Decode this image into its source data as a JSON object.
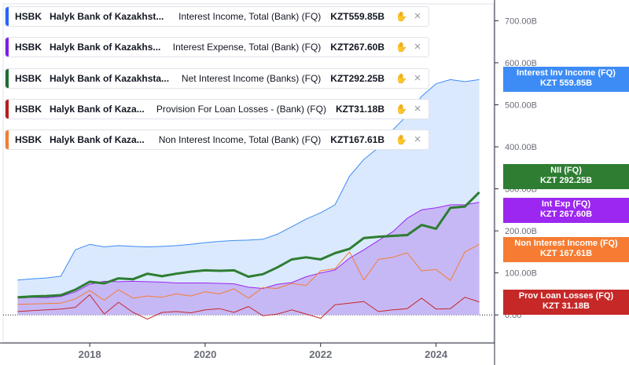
{
  "legend": [
    {
      "ticker": "HSBK",
      "company": "Halyk Bank of Kazakhst...",
      "metric": "Interest Income, Total (Bank) (FQ)",
      "value": "KZT559.85B",
      "color": "#2962ff"
    },
    {
      "ticker": "HSBK",
      "company": "Halyk Bank of Kazakhs...",
      "metric": "Interest Expense, Total (Bank) (FQ)",
      "value": "KZT267.60B",
      "color": "#7b1fe0"
    },
    {
      "ticker": "HSBK",
      "company": "Halyk Bank of Kazakhsta...",
      "metric": "Net Interest Income (Banks) (FQ)",
      "value": "KZT292.25B",
      "color": "#1e6b34"
    },
    {
      "ticker": "HSBK",
      "company": "Halyk Bank of Kaza...",
      "metric": "Provision For Loan Losses - (Bank) (FQ)",
      "value": "KZT31.18B",
      "color": "#b71c1c"
    },
    {
      "ticker": "HSBK",
      "company": "Halyk Bank of Kaza...",
      "metric": "Non Interest Income, Total (Bank) (FQ)",
      "value": "KZT167.61B",
      "color": "#f57c32"
    }
  ],
  "price_labels": [
    {
      "label": "Interest Inv Income (FQ)",
      "value": "KZT 559.85B",
      "color": "#3d8cf5",
      "y": 559.85
    },
    {
      "label": "NII (FQ)",
      "value": "KZT 292.25B",
      "color": "#2e7d32",
      "y": 330
    },
    {
      "label": "Int Exp (FQ)",
      "value": "KZT 267.60B",
      "color": "#9c27f0",
      "y": 248
    },
    {
      "label": "Non Interest Income (FQ)",
      "value": "KZT 167.61B",
      "color": "#f57c32",
      "y": 155
    },
    {
      "label": "Prov Loan Losses (FQ)",
      "value": "KZT 31.18B",
      "color": "#c62828",
      "y": 31.18
    }
  ],
  "chart_data": {
    "type": "area",
    "x_ticks": [
      "2018",
      "2020",
      "2022",
      "2024"
    ],
    "y_ticks": [
      "0.00",
      "100.00B",
      "200.00B",
      "300.00B",
      "400.00B",
      "500.00B",
      "600.00B",
      "700.00B"
    ],
    "y_tick_values": [
      0,
      100,
      200,
      300,
      400,
      500,
      600,
      700
    ],
    "ylim": [
      -65,
      740
    ],
    "xlim": [
      2016.5,
      2025.0
    ],
    "series": [
      {
        "name": "Interest Income, Total (Bank) (FQ)",
        "color": "#3d8cf5",
        "fill": "#d6e7fd",
        "width": 1,
        "x": [
          2016.75,
          2017.0,
          2017.25,
          2017.5,
          2017.75,
          2018.0,
          2018.25,
          2018.5,
          2018.75,
          2019.0,
          2019.25,
          2019.5,
          2019.75,
          2020.0,
          2020.25,
          2020.5,
          2020.75,
          2021.0,
          2021.25,
          2021.5,
          2021.75,
          2022.0,
          2022.25,
          2022.5,
          2022.75,
          2023.0,
          2023.25,
          2023.5,
          2023.75,
          2024.0,
          2024.25,
          2024.5,
          2024.75
        ],
        "values": [
          83,
          86,
          88,
          92,
          155,
          168,
          162,
          165,
          163,
          162,
          163,
          165,
          168,
          172,
          175,
          177,
          178,
          180,
          192,
          210,
          228,
          243,
          262,
          330,
          370,
          398,
          440,
          475,
          520,
          550,
          560,
          555,
          560
        ]
      },
      {
        "name": "Interest Expense, Total (Bank) (FQ)",
        "color": "#9c27f0",
        "fill": "#c3b3f4",
        "width": 1,
        "x": [
          2016.75,
          2017.0,
          2017.25,
          2017.5,
          2017.75,
          2018.0,
          2018.25,
          2018.5,
          2018.75,
          2019.0,
          2019.25,
          2019.5,
          2019.75,
          2020.0,
          2020.25,
          2020.5,
          2020.75,
          2021.0,
          2021.25,
          2021.5,
          2021.75,
          2022.0,
          2022.25,
          2022.5,
          2022.75,
          2023.0,
          2023.25,
          2023.5,
          2023.75,
          2024.0,
          2024.25,
          2024.5,
          2024.75
        ],
        "values": [
          40,
          42,
          41,
          44,
          55,
          73,
          80,
          79,
          80,
          79,
          78,
          76,
          76,
          76,
          75,
          74,
          66,
          63,
          73,
          77,
          91,
          100,
          107,
          135,
          155,
          177,
          198,
          230,
          250,
          255,
          262,
          262,
          268
        ]
      },
      {
        "name": "Non Interest Income, Total (Bank) (FQ)",
        "color": "#f57c32",
        "fill": "none",
        "width": 1,
        "x": [
          2016.75,
          2017.0,
          2017.25,
          2017.5,
          2017.75,
          2018.0,
          2018.25,
          2018.5,
          2018.75,
          2019.0,
          2019.25,
          2019.5,
          2019.75,
          2020.0,
          2020.25,
          2020.5,
          2020.75,
          2021.0,
          2021.25,
          2021.5,
          2021.75,
          2022.0,
          2022.25,
          2022.5,
          2022.75,
          2023.0,
          2023.25,
          2023.5,
          2023.75,
          2024.0,
          2024.25,
          2024.5,
          2024.75
        ],
        "values": [
          25,
          26,
          27,
          28,
          38,
          58,
          35,
          60,
          40,
          45,
          42,
          50,
          45,
          55,
          50,
          62,
          40,
          65,
          63,
          75,
          70,
          105,
          110,
          150,
          83,
          132,
          137,
          148,
          105,
          108,
          82,
          150,
          168
        ]
      },
      {
        "name": "Provision For Loan Losses - (Bank) (FQ)",
        "color": "#c62828",
        "fill": "none",
        "width": 1,
        "x": [
          2016.75,
          2017.0,
          2017.25,
          2017.5,
          2017.75,
          2018.0,
          2018.25,
          2018.5,
          2018.75,
          2019.0,
          2019.25,
          2019.5,
          2019.75,
          2020.0,
          2020.25,
          2020.5,
          2020.75,
          2021.0,
          2021.25,
          2021.5,
          2021.75,
          2022.0,
          2022.25,
          2022.5,
          2022.75,
          2023.0,
          2023.25,
          2023.5,
          2023.75,
          2024.0,
          2024.25,
          2024.5,
          2024.75
        ],
        "values": [
          8,
          10,
          12,
          14,
          18,
          48,
          2,
          30,
          6,
          -10,
          6,
          8,
          5,
          12,
          15,
          6,
          20,
          -2,
          2,
          12,
          2,
          -8,
          24,
          28,
          32,
          8,
          12,
          15,
          40,
          14,
          15,
          42,
          31
        ]
      },
      {
        "name": "Net Interest Income (Banks) (FQ)",
        "color": "#2e7d32",
        "fill": "none",
        "width": 3,
        "x": [
          2016.75,
          2017.0,
          2017.25,
          2017.5,
          2017.75,
          2018.0,
          2018.25,
          2018.5,
          2018.75,
          2019.0,
          2019.25,
          2019.5,
          2019.75,
          2020.0,
          2020.25,
          2020.5,
          2020.75,
          2021.0,
          2021.25,
          2021.5,
          2021.75,
          2022.0,
          2022.25,
          2022.5,
          2022.75,
          2023.0,
          2023.25,
          2023.5,
          2023.75,
          2024.0,
          2024.25,
          2024.5,
          2024.75
        ],
        "values": [
          42,
          44,
          45,
          47,
          60,
          79,
          75,
          87,
          85,
          98,
          92,
          98,
          103,
          106,
          105,
          106,
          91,
          97,
          113,
          132,
          137,
          132,
          147,
          157,
          183,
          186,
          188,
          190,
          214,
          205,
          255,
          258,
          292
        ]
      }
    ]
  }
}
